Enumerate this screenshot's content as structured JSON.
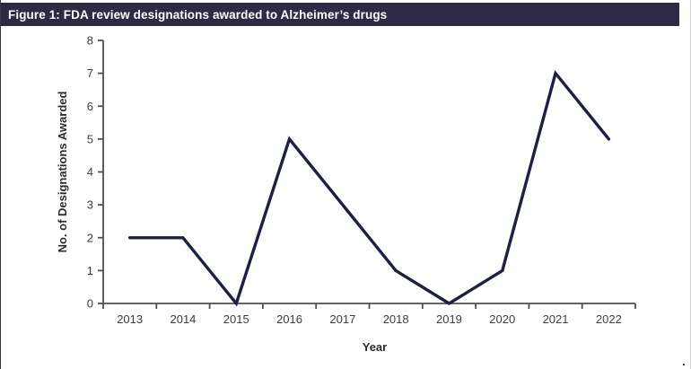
{
  "figure": {
    "title": "Figure 1: FDA review designations awarded to Alzheimer’s drugs"
  },
  "colors": {
    "title_bar_bg": "#2e2a44",
    "title_text": "#ffffff",
    "series_line": "#1c2043",
    "axis_line": "#4f4f4f",
    "tick_label": "#3d3d3d",
    "axis_title": "#2b2b2b"
  },
  "chart_data": {
    "type": "line",
    "title": "Figure 1: FDA review designations awarded to Alzheimer’s drugs",
    "categories": [
      "2013",
      "2014",
      "2015",
      "2016",
      "2017",
      "2018",
      "2019",
      "2020",
      "2021",
      "2022"
    ],
    "values": [
      2,
      2,
      0,
      5,
      3,
      1,
      0,
      1,
      7,
      5
    ],
    "xlabel": "Year",
    "ylabel": "No. of Designations Awarded",
    "ylim": [
      0,
      8
    ],
    "ytick_step": 1,
    "grid": false,
    "legend_position": "none"
  }
}
